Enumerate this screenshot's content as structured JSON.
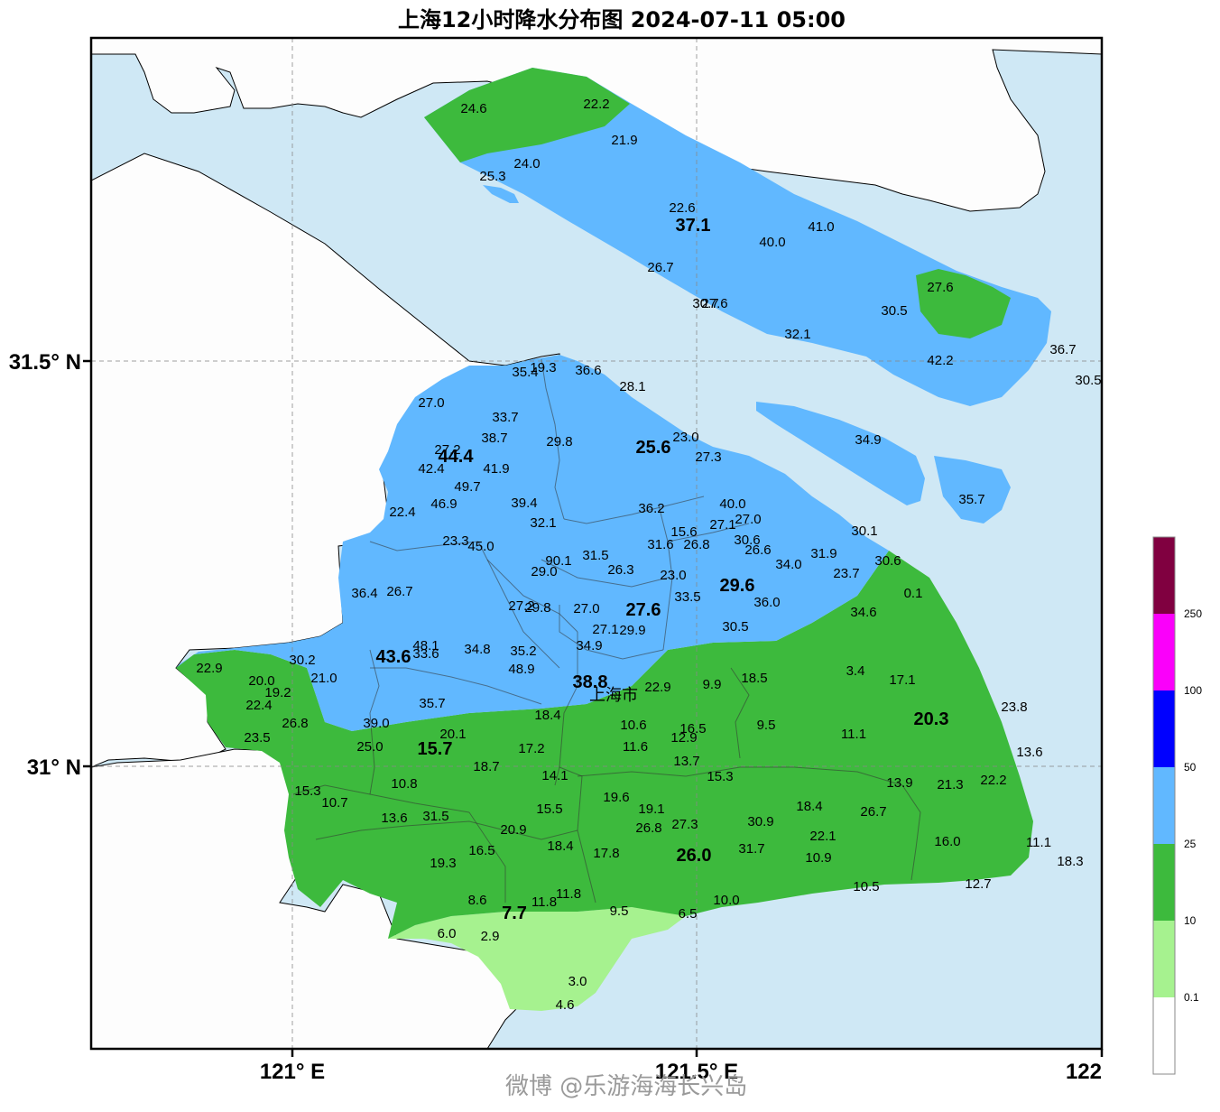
{
  "title": "上海12小时降水分布图 2024-07-11 05:00",
  "city_label": "上海市",
  "axes": {
    "lat_labels": [
      "31.5° N",
      "31° N"
    ],
    "lon_labels": [
      "121° E",
      "121.5° E",
      "122"
    ]
  },
  "legend": {
    "bins": [
      {
        "label": "0.1",
        "color": "#ffffff"
      },
      {
        "label": "10",
        "color": "#a6f28f"
      },
      {
        "label": "25",
        "color": "#3dba3d"
      },
      {
        "label": "50",
        "color": "#61b8ff"
      },
      {
        "label": "100",
        "color": "#0000ff"
      },
      {
        "label": "250",
        "color": "#fa00fa"
      },
      {
        "label": "",
        "color": "#800040"
      }
    ]
  },
  "colors": {
    "sea": "#cfe8f5",
    "land": "#fdfdfd",
    "blue_zone": "#61b8ff",
    "green_zone": "#3dba3d",
    "light_green_zone": "#a6f28f"
  },
  "watermark": "微博 @乐游海海长兴岛",
  "stations": [
    {
      "v": "24.6"
    },
    {
      "v": "22.2"
    },
    {
      "v": "21.9"
    },
    {
      "v": "24.0"
    },
    {
      "v": "25.3"
    },
    {
      "v": "22.6"
    },
    {
      "v": "37.1",
      "big": true
    },
    {
      "v": "41.0"
    },
    {
      "v": "40.0"
    },
    {
      "v": "26.7"
    },
    {
      "v": "30.7"
    },
    {
      "v": "27.6"
    },
    {
      "v": "27.6"
    },
    {
      "v": "30.5"
    },
    {
      "v": "32.1"
    },
    {
      "v": "36.7"
    },
    {
      "v": "42.2"
    },
    {
      "v": "30.5"
    },
    {
      "v": "35.4"
    },
    {
      "v": "19.3"
    },
    {
      "v": "36.6"
    },
    {
      "v": "28.1"
    },
    {
      "v": "27.0"
    },
    {
      "v": "33.7"
    },
    {
      "v": "38.7"
    },
    {
      "v": "29.8"
    },
    {
      "v": "23.0"
    },
    {
      "v": "25.6",
      "big": true
    },
    {
      "v": "27.3"
    },
    {
      "v": "34.9"
    },
    {
      "v": "27.2"
    },
    {
      "v": "44.4",
      "big": true
    },
    {
      "v": "42.4"
    },
    {
      "v": "41.9"
    },
    {
      "v": "49.7"
    },
    {
      "v": "46.9"
    },
    {
      "v": "39.4"
    },
    {
      "v": "36.2"
    },
    {
      "v": "40.0"
    },
    {
      "v": "35.7"
    },
    {
      "v": "22.4"
    },
    {
      "v": "32.1"
    },
    {
      "v": "15.6"
    },
    {
      "v": "27.1"
    },
    {
      "v": "27.0"
    },
    {
      "v": "30.1"
    },
    {
      "v": "23.3"
    },
    {
      "v": "45.0"
    },
    {
      "v": "31.6"
    },
    {
      "v": "26.8"
    },
    {
      "v": "30.6"
    },
    {
      "v": "26.6"
    },
    {
      "v": "31.9"
    },
    {
      "v": "90.1"
    },
    {
      "v": "31.5"
    },
    {
      "v": "29.0"
    },
    {
      "v": "26.3"
    },
    {
      "v": "34.0"
    },
    {
      "v": "30.6"
    },
    {
      "v": "23.0"
    },
    {
      "v": "29.6",
      "big": true
    },
    {
      "v": "23.7"
    },
    {
      "v": "36.4"
    },
    {
      "v": "26.7"
    },
    {
      "v": "0.1"
    },
    {
      "v": "27.2"
    },
    {
      "v": "29.8"
    },
    {
      "v": "27.0"
    },
    {
      "v": "27.6",
      "big": true
    },
    {
      "v": "33.5"
    },
    {
      "v": "36.0"
    },
    {
      "v": "34.6"
    },
    {
      "v": "27.1"
    },
    {
      "v": "29.9"
    },
    {
      "v": "30.5"
    },
    {
      "v": "48.1"
    },
    {
      "v": "33.6"
    },
    {
      "v": "34.8"
    },
    {
      "v": "35.2"
    },
    {
      "v": "34.9"
    },
    {
      "v": "43.6",
      "big": true
    },
    {
      "v": "30.2"
    },
    {
      "v": "22.9"
    },
    {
      "v": "48.9"
    },
    {
      "v": "21.0"
    },
    {
      "v": "38.8",
      "big": true
    },
    {
      "v": "22.9"
    },
    {
      "v": "9.9"
    },
    {
      "v": "18.5"
    },
    {
      "v": "3.4"
    },
    {
      "v": "17.1"
    },
    {
      "v": "20.0"
    },
    {
      "v": "19.2"
    },
    {
      "v": "22.4"
    },
    {
      "v": "35.7"
    },
    {
      "v": "18.4"
    },
    {
      "v": "23.8"
    },
    {
      "v": "20.3",
      "big": true
    },
    {
      "v": "26.8"
    },
    {
      "v": "39.0"
    },
    {
      "v": "20.1"
    },
    {
      "v": "10.6"
    },
    {
      "v": "16.5"
    },
    {
      "v": "9.5"
    },
    {
      "v": "11.1"
    },
    {
      "v": "23.5"
    },
    {
      "v": "25.0"
    },
    {
      "v": "15.7",
      "big": true
    },
    {
      "v": "17.2"
    },
    {
      "v": "11.6"
    },
    {
      "v": "12.9"
    },
    {
      "v": "13.6"
    },
    {
      "v": "18.7"
    },
    {
      "v": "13.7"
    },
    {
      "v": "14.1"
    },
    {
      "v": "15.3"
    },
    {
      "v": "13.9"
    },
    {
      "v": "21.3"
    },
    {
      "v": "22.2"
    },
    {
      "v": "10.8"
    },
    {
      "v": "15.3"
    },
    {
      "v": "10.7"
    },
    {
      "v": "19.6"
    },
    {
      "v": "19.1"
    },
    {
      "v": "18.4"
    },
    {
      "v": "15.5"
    },
    {
      "v": "26.7"
    },
    {
      "v": "13.6"
    },
    {
      "v": "31.5"
    },
    {
      "v": "26.8"
    },
    {
      "v": "27.3"
    },
    {
      "v": "30.9"
    },
    {
      "v": "20.9"
    },
    {
      "v": "22.1"
    },
    {
      "v": "16.0"
    },
    {
      "v": "16.5"
    },
    {
      "v": "18.4"
    },
    {
      "v": "11.1"
    },
    {
      "v": "17.8"
    },
    {
      "v": "26.0",
      "big": true
    },
    {
      "v": "31.7"
    },
    {
      "v": "10.9"
    },
    {
      "v": "19.3"
    },
    {
      "v": "18.3"
    },
    {
      "v": "10.5"
    },
    {
      "v": "12.7"
    },
    {
      "v": "11.8"
    },
    {
      "v": "8.6"
    },
    {
      "v": "11.8"
    },
    {
      "v": "10.0"
    },
    {
      "v": "7.7",
      "big": true
    },
    {
      "v": "9.5"
    },
    {
      "v": "6.5"
    },
    {
      "v": "6.0"
    },
    {
      "v": "2.9"
    },
    {
      "v": "3.0"
    },
    {
      "v": "4.6"
    }
  ]
}
